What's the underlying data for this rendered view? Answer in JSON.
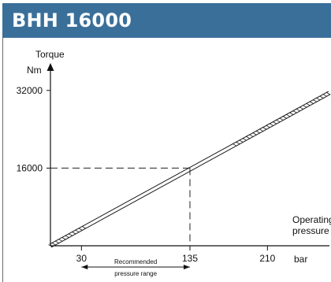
{
  "header": {
    "title": "BHH 16000"
  },
  "chart_data": {
    "type": "line",
    "title": "",
    "xlabel": "bar",
    "xlabel_lines": [
      "Operating",
      "pressure"
    ],
    "ylabel_lines": [
      "Torque",
      "Nm"
    ],
    "x_ticks": [
      30,
      135,
      210
    ],
    "y_ticks": [
      16000,
      32000
    ],
    "xlim": [
      0,
      270
    ],
    "ylim": [
      0,
      37000
    ],
    "series": [
      {
        "x": [
          0,
          270
        ],
        "y": [
          0,
          31500
        ]
      }
    ],
    "reference_point": {
      "x": 135,
      "y": 16000
    },
    "recommended_range": {
      "from": 30,
      "to": 135,
      "label_lines": [
        "Recommended",
        "pressure range"
      ]
    },
    "grid": false,
    "colors": {
      "header": "#3a6f9a",
      "line": "#1a1a1a"
    }
  }
}
